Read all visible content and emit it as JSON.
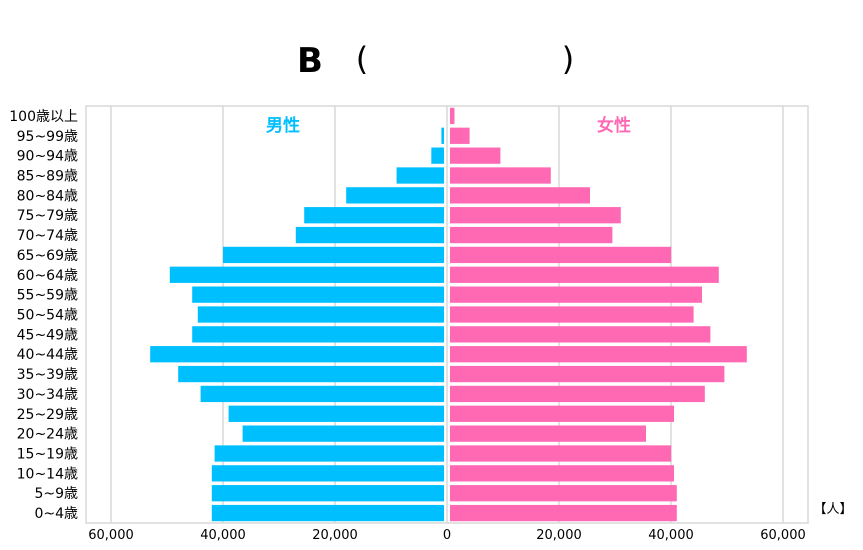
{
  "chart_data": {
    "type": "bar",
    "orientation": "population-pyramid",
    "title": "B",
    "title_open_paren": "(",
    "title_close_paren": ")",
    "unit_label": "【人】",
    "categories": [
      "0~4歳",
      "5~9歳",
      "10~14歳",
      "15~19歳",
      "20~24歳",
      "25~29歳",
      "30~34歳",
      "35~39歳",
      "40~44歳",
      "45~49歳",
      "50~54歳",
      "55~59歳",
      "60~64歳",
      "65~69歳",
      "70~74歳",
      "75~79歳",
      "80~84歳",
      "85~89歳",
      "90~94歳",
      "95~99歳",
      "100歳以上"
    ],
    "series": [
      {
        "name": "男性",
        "color": "#00bfff",
        "values": [
          42000,
          42000,
          42000,
          41500,
          36500,
          39000,
          44000,
          48000,
          53000,
          45500,
          44500,
          45500,
          49500,
          40000,
          27000,
          25500,
          18000,
          9000,
          2800,
          1000,
          300
        ]
      },
      {
        "name": "女性",
        "color": "#ff69b4",
        "values": [
          40500,
          40500,
          40000,
          39500,
          35000,
          40000,
          45500,
          49000,
          53000,
          46500,
          43500,
          45000,
          48000,
          39500,
          29000,
          30500,
          25000,
          18000,
          9000,
          3500,
          800
        ]
      }
    ],
    "xlim": [
      -60000,
      60000
    ],
    "xticks": [
      -60000,
      -40000,
      -20000,
      0,
      20000,
      40000,
      60000
    ],
    "xtick_labels": [
      "60,000",
      "40,000",
      "20,000",
      "0",
      "20,000",
      "40,000",
      "60,000"
    ],
    "grid": true
  }
}
